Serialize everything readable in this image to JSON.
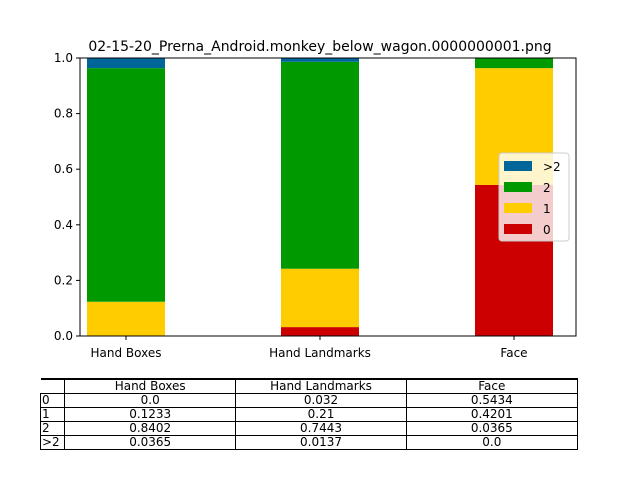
{
  "chart_data": {
    "type": "bar",
    "stacked": true,
    "title": "02-15-20_Prerna_Android.monkey_below_wagon.0000000001.png",
    "xlabel": "",
    "ylabel": "",
    "ylim": [
      0,
      1.0
    ],
    "yticks": [
      "0.0",
      "0.2",
      "0.4",
      "0.6",
      "0.8",
      "1.0"
    ],
    "categories": [
      "Hand Boxes",
      "Hand Landmarks",
      "Face"
    ],
    "series": [
      {
        "name": "0",
        "color": "#cc0000",
        "values": [
          0.0,
          0.032,
          0.5434
        ]
      },
      {
        "name": "1",
        "color": "#ffcc00",
        "values": [
          0.1233,
          0.21,
          0.4201
        ]
      },
      {
        "name": "2",
        "color": "#009900",
        "values": [
          0.8402,
          0.7443,
          0.0365
        ]
      },
      {
        "name": ">2",
        "color": "#006699",
        "values": [
          0.0365,
          0.0137,
          0.0
        ]
      }
    ],
    "legend": {
      "placement": "center-right",
      "order": [
        ">2",
        "2",
        "1",
        "0"
      ]
    },
    "grid": false
  },
  "table": {
    "headers": [
      "Hand Boxes",
      "Hand Landmarks",
      "Face"
    ],
    "rows": [
      {
        "label": "0",
        "cells": [
          "0.0",
          "0.032",
          "0.5434"
        ]
      },
      {
        "label": "1",
        "cells": [
          "0.1233",
          "0.21",
          "0.4201"
        ]
      },
      {
        "label": "2",
        "cells": [
          "0.8402",
          "0.7443",
          "0.0365"
        ]
      },
      {
        "label": ">2",
        "cells": [
          "0.0365",
          "0.0137",
          "0.0"
        ]
      }
    ]
  }
}
